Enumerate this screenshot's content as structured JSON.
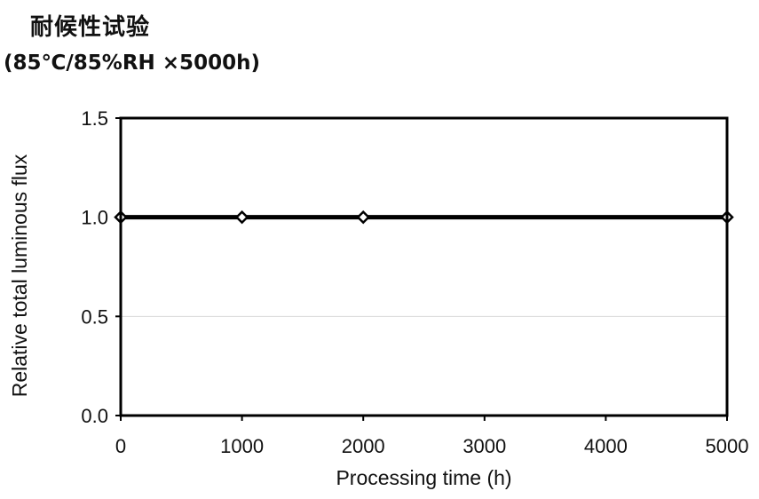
{
  "chart_data": {
    "type": "line",
    "title": "耐候性试验",
    "subtitle": "(85℃/85%RH ×5000h)",
    "xlabel": "Processing time (h)",
    "ylabel": "Relative total luminous flux",
    "xlim": [
      0,
      5000
    ],
    "ylim": [
      0.0,
      1.5
    ],
    "x_ticks": [
      0,
      1000,
      2000,
      3000,
      4000,
      5000
    ],
    "x_tick_labels": [
      "0",
      "1000",
      "2000",
      "3000",
      "4000",
      "5000"
    ],
    "y_ticks": [
      0.0,
      0.5,
      1.0,
      1.5
    ],
    "y_tick_labels": [
      "0.0",
      "0.5",
      "1.0",
      "1.5"
    ],
    "grid": true,
    "series": [
      {
        "x": [
          0,
          1000,
          2000,
          5000
        ],
        "y": [
          1.0,
          1.0,
          1.0,
          1.0
        ],
        "marker": "diamond-open",
        "color": "#000000"
      }
    ]
  }
}
